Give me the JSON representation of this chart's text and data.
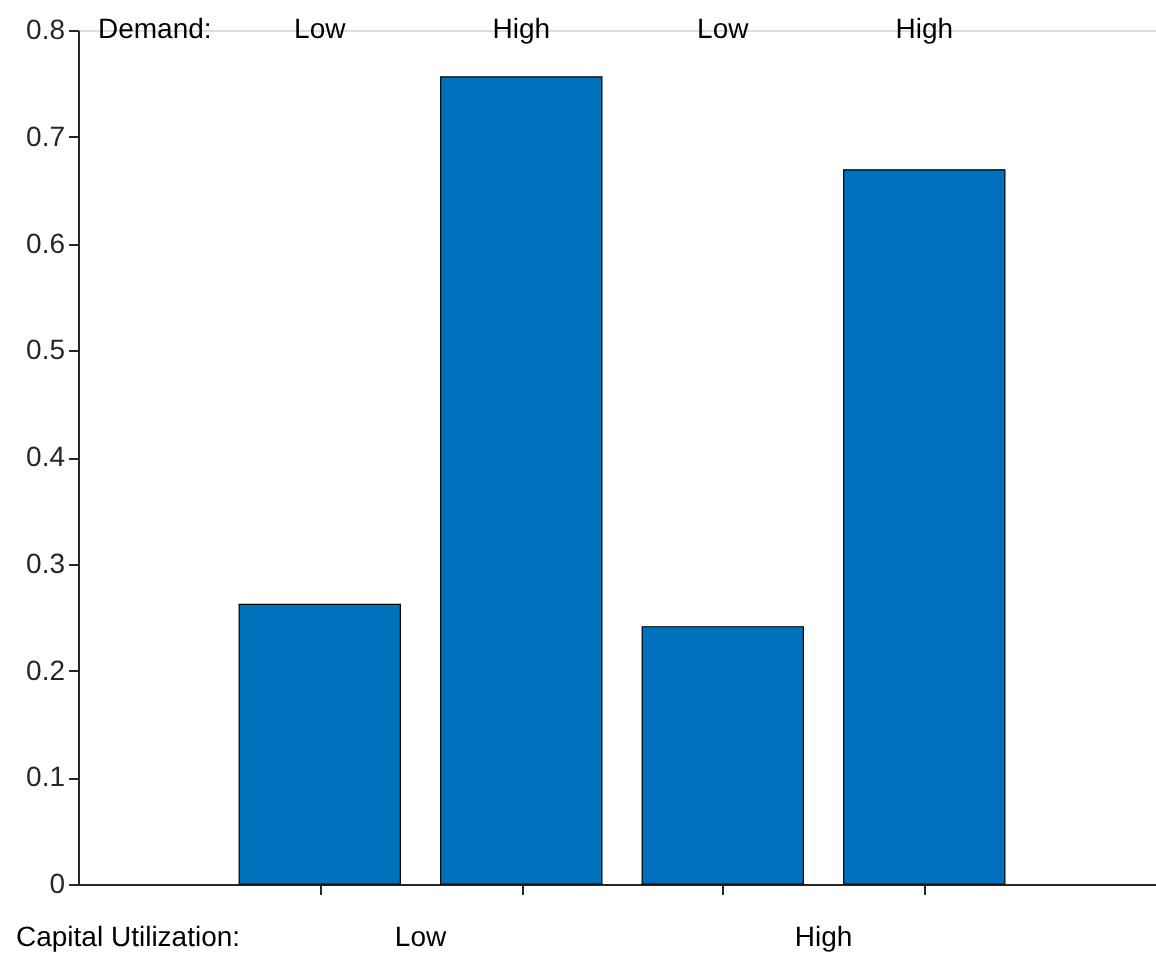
{
  "chart_data": {
    "type": "bar",
    "categories": [
      "Low",
      "High",
      "Low",
      "High"
    ],
    "values": [
      0.262,
      0.756,
      0.241,
      0.669
    ],
    "color": "#0072bd",
    "ylim": [
      0,
      0.8
    ],
    "yticks": [
      0,
      0.1,
      0.2,
      0.3,
      0.4,
      0.5,
      0.6,
      0.7,
      0.8
    ],
    "annotations": [
      "Demand:",
      "Capital Utilization:",
      "Low",
      "High"
    ]
  }
}
